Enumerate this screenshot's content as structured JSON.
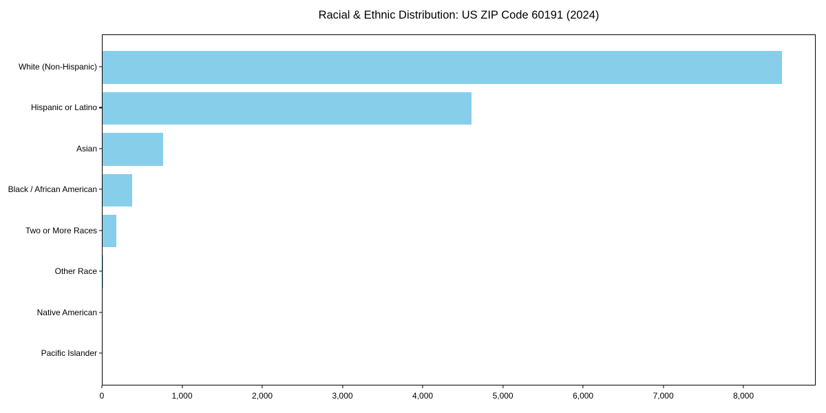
{
  "title": "Racial & Ethnic Distribution: US ZIP Code 60191 (2024)",
  "chart_data": {
    "type": "bar",
    "orientation": "horizontal",
    "title": "Racial & Ethnic Distribution: US ZIP Code 60191 (2024)",
    "xlabel": "",
    "ylabel": "",
    "categories": [
      "White (Non-Hispanic)",
      "Hispanic or Latino",
      "Asian",
      "Black / African American",
      "Two or More Races",
      "Other Race",
      "Native American",
      "Pacific Islander"
    ],
    "values": [
      8470,
      4600,
      752,
      367,
      174,
      12,
      0,
      0
    ],
    "bar_color": "#87CEEB",
    "xlim": [
      0,
      8900
    ],
    "x_ticks": [
      0,
      1000,
      2000,
      3000,
      4000,
      5000,
      6000,
      7000,
      8000
    ],
    "x_tick_format": "comma-thousands",
    "ylim": [
      -0.79,
      7.79
    ],
    "bar_thickness_units": 0.8,
    "y_inverted": true,
    "grid": false,
    "legend": false,
    "background_color": "#ffffff",
    "spine_color": "#000000"
  }
}
